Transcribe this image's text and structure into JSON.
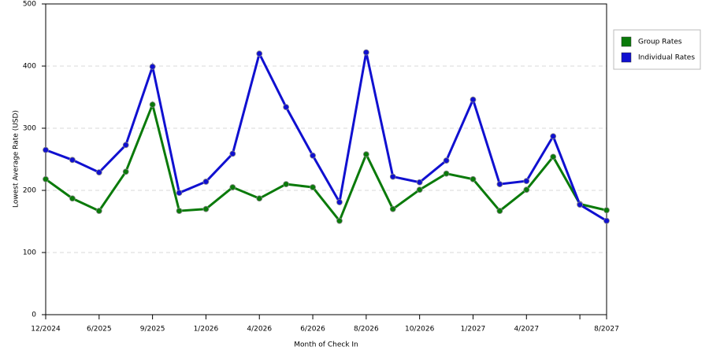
{
  "chart_data": {
    "type": "line",
    "xlabel": "Month of Check In",
    "ylabel": "Lowest Average Rate (USD)",
    "categories": [
      "12/2024",
      null,
      "6/2025",
      null,
      "9/2025",
      null,
      "1/2026",
      null,
      "4/2026",
      null,
      "6/2026",
      null,
      "8/2026",
      null,
      "10/2026",
      null,
      "1/2027",
      null,
      "4/2027",
      null,
      null,
      "8/2027"
    ],
    "series": [
      {
        "name": "Group Rates",
        "color": "#0a7a0a",
        "values": [
          218,
          187,
          167,
          230,
          338,
          167,
          170,
          205,
          187,
          210,
          205,
          151,
          258,
          170,
          201,
          227,
          218,
          167,
          201,
          254,
          178,
          168
        ]
      },
      {
        "name": "Individual Rates",
        "color": "#1010d0",
        "values": [
          265,
          249,
          229,
          273,
          399,
          196,
          214,
          259,
          420,
          334,
          256,
          181,
          422,
          222,
          213,
          248,
          346,
          210,
          215,
          287,
          177,
          151
        ]
      }
    ],
    "ylim": [
      0,
      500
    ],
    "yticks": [
      0,
      100,
      200,
      300,
      400,
      500
    ],
    "grid": true,
    "legend": "right"
  }
}
